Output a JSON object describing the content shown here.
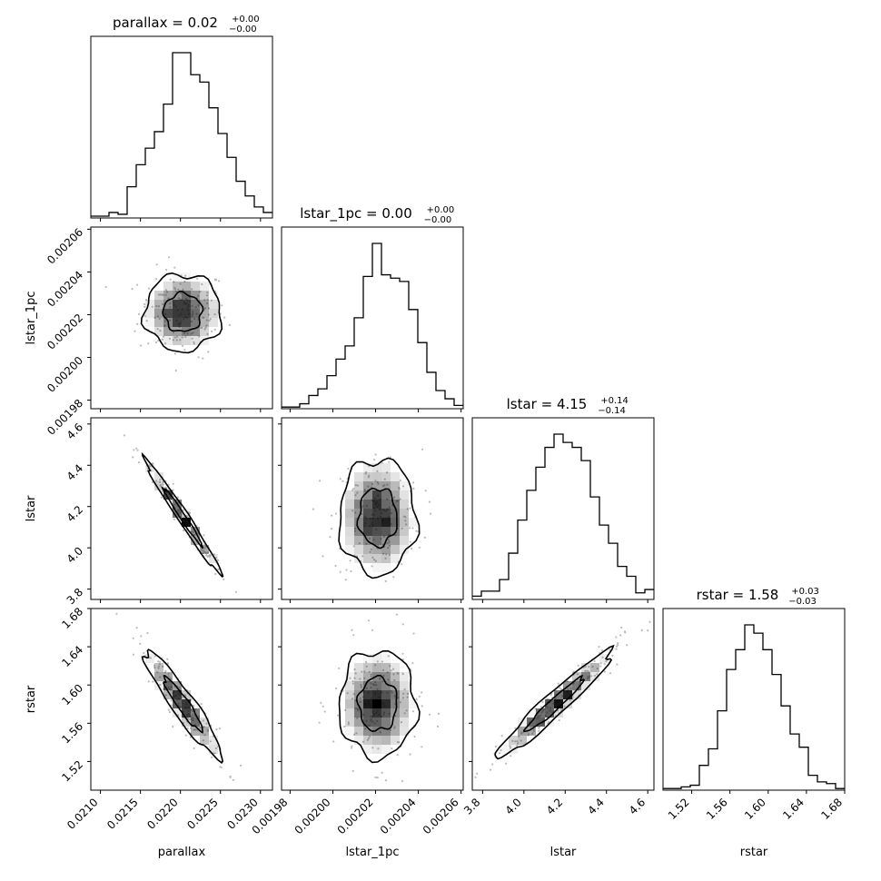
{
  "chart_data": {
    "type": "corner",
    "parameters": [
      "parallax",
      "lstar_1pc",
      "lstar",
      "rstar"
    ],
    "titles": [
      {
        "param": "parallax",
        "median": "0.02",
        "upper": "+0.00",
        "lower": "−0.00"
      },
      {
        "param": "lstar_1pc",
        "median": "0.00",
        "upper": "+0.00",
        "lower": "−0.00"
      },
      {
        "param": "lstar",
        "median": "4.15",
        "upper": "+0.14",
        "lower": "−0.14"
      },
      {
        "param": "rstar",
        "median": "1.58",
        "upper": "+0.03",
        "lower": "−0.03"
      }
    ],
    "axes": {
      "parallax": {
        "range": [
          0.02088,
          0.02315
        ],
        "ticks": [
          "0.0210",
          "0.0215",
          "0.0220",
          "0.0225",
          "0.0230"
        ]
      },
      "lstar_1pc": {
        "range": [
          0.001976,
          0.002061
        ],
        "ticks": [
          "0.00198",
          "0.00200",
          "0.00202",
          "0.00204",
          "0.00206"
        ]
      },
      "lstar": {
        "range": [
          3.75,
          4.63
        ],
        "ticks": [
          "3.8",
          "4.0",
          "4.2",
          "4.4",
          "4.6"
        ]
      },
      "rstar": {
        "range": [
          1.49,
          1.68
        ],
        "ticks": [
          "1.52",
          "1.56",
          "1.60",
          "1.64",
          "1.68"
        ]
      }
    },
    "histograms": {
      "parallax": [
        1,
        1,
        3,
        2,
        17,
        29,
        38,
        47,
        62,
        90,
        90,
        78,
        74,
        60,
        46,
        33,
        20,
        12,
        6,
        3
      ],
      "lstar_1pc": [
        1,
        1,
        3,
        8,
        12,
        20,
        30,
        38,
        55,
        80,
        100,
        81,
        79,
        77,
        60,
        40,
        22,
        11,
        6,
        2
      ],
      "lstar": [
        2,
        5,
        5,
        12,
        28,
        48,
        66,
        80,
        92,
        100,
        95,
        92,
        84,
        62,
        45,
        34,
        20,
        14,
        4,
        6
      ],
      "rstar": [
        1,
        1,
        2,
        3,
        15,
        25,
        48,
        73,
        85,
        100,
        95,
        85,
        70,
        51,
        34,
        26,
        9,
        5,
        4,
        1
      ]
    },
    "pairs": [
      {
        "x": "parallax",
        "y": "lstar_1pc",
        "rho": 0.0
      },
      {
        "x": "parallax",
        "y": "lstar",
        "rho": -0.985
      },
      {
        "x": "lstar_1pc",
        "y": "lstar",
        "rho": 0.0
      },
      {
        "x": "parallax",
        "y": "rstar",
        "rho": -0.93
      },
      {
        "x": "lstar_1pc",
        "y": "rstar",
        "rho": 0.0
      },
      {
        "x": "lstar",
        "y": "rstar",
        "rho": 0.96
      }
    ],
    "means": {
      "parallax": 0.02203,
      "lstar_1pc": 0.002021,
      "lstar": 4.15,
      "rstar": 1.58
    },
    "sigmas": {
      "parallax": 0.00024,
      "lstar_1pc": 9e-06,
      "lstar": 0.14,
      "rstar": 0.028
    },
    "contour_levels": [
      0.393,
      0.865
    ],
    "colors": {
      "line": "#000000",
      "density": "#000000"
    }
  }
}
